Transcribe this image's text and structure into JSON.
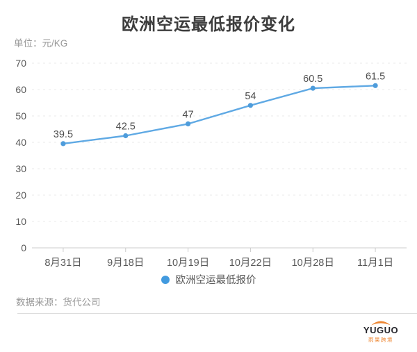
{
  "header": {
    "title": "欧洲空运最低报价变化",
    "unit_label": "单位：元/KG"
  },
  "chart_data": {
    "type": "line",
    "title": "欧洲空运最低报价变化",
    "ylabel": "元/KG",
    "xlabel": "",
    "categories": [
      "8月31日",
      "9月18日",
      "10月19日",
      "10月22日",
      "10月28日",
      "11月1日"
    ],
    "series": [
      {
        "name": "欧洲空运最低报价",
        "values": [
          39.5,
          42.5,
          47,
          54,
          60.5,
          61.5
        ]
      }
    ],
    "ylim": [
      0,
      70
    ],
    "ytick_step": 10,
    "grid": "dashed-horizontal",
    "legend_position": "bottom",
    "colors": {
      "line": "#5fa9e4",
      "marker": "#4e9cdb",
      "data_label": "#4d4d4d",
      "axis_label": "#595959",
      "gridline": "#e9e9e9",
      "axis_line": "#cccccc"
    }
  },
  "legend": {
    "label": "欧洲空运最低报价",
    "dot_color": "#429adf"
  },
  "footer": {
    "source": "数据来源：货代公司"
  },
  "logo": {
    "text": "YUGUO",
    "subtext": "雨果跨境",
    "accent_color": "#ed8632"
  }
}
